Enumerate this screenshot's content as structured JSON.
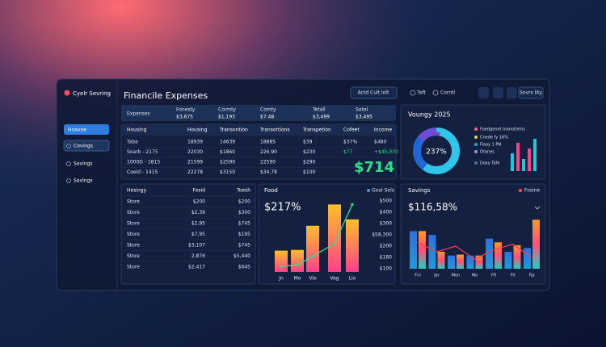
{
  "sidebar": {
    "brand": "Cyelr Sevring",
    "nav": [
      "Hoavne",
      "Covings",
      "Savings",
      "Savlngs"
    ]
  },
  "header": {
    "title": "Financile Expenses",
    "buttons": [
      "Actd Cult lolt",
      "Taft",
      "Corntl",
      "Sovrs lity"
    ]
  },
  "summary": [
    {
      "label": "Expenses"
    },
    {
      "label": "Fonesty",
      "value": "$3,675"
    },
    {
      "label": "Cormty",
      "value": "$1,193"
    },
    {
      "label": "Comty",
      "value": "$7.48"
    },
    {
      "label": "Tetall",
      "value": "$3,499"
    },
    {
      "label": "Sotel",
      "value": "$3,495"
    }
  ],
  "table": {
    "header": [
      "Housing",
      "Housing",
      "Transontion",
      "Transortions",
      "Transpetion",
      "Cofeet",
      "Income"
    ],
    "rows": [
      [
        "Taba",
        "18939",
        "14639",
        "1888S",
        "$39",
        "$37%",
        "$480"
      ],
      [
        "Soarb - 2175",
        "22030",
        "$1860",
        "226.90",
        "$230",
        "$77",
        "+$45,070"
      ],
      [
        "1000D - 1815",
        "21599",
        "$2590",
        "22590",
        "$290"
      ],
      [
        "Coeld - 1415",
        "22278",
        "$3150",
        "$34,78",
        "$100"
      ]
    ],
    "highlight": "$714"
  },
  "items_table": {
    "header": [
      "Hesingy",
      "Fosid",
      "Toesh"
    ],
    "rows": [
      [
        "Store",
        "$200",
        "$200"
      ],
      [
        "Store",
        "$2,39",
        "$300"
      ],
      [
        "Store",
        "$2,95",
        "$745"
      ],
      [
        "Store",
        "$7,95",
        "$195"
      ],
      [
        "Store",
        "$3,107",
        "$745"
      ],
      [
        "Store",
        "2,876",
        "$5,440"
      ],
      [
        "Store",
        "$2,417",
        "$645"
      ]
    ]
  },
  "food_chart": {
    "title": "Food",
    "legend": "Goal Sels",
    "headline": "$217%",
    "axis_labels": [
      "$500",
      "$400",
      "$300",
      "$58,300",
      "$200",
      "$180",
      "$100"
    ],
    "categories": [
      "Jn",
      "Mo",
      "Vie",
      "Vag",
      "Lio"
    ],
    "bars": [
      30,
      31,
      65,
      95,
      74
    ],
    "line": [
      8,
      10,
      22,
      40,
      95
    ],
    "ylim": [
      0,
      100
    ]
  },
  "donut": {
    "title": "Voungy 2025",
    "center": "237%",
    "values": [
      60,
      25,
      15
    ],
    "colors": [
      "#2fc4e8",
      "#1f66d6",
      "#6a4fd6"
    ],
    "legend": [
      "Fuedgenet Inanotiems",
      "Cnede fy 16%",
      "Fiaoy 1 PN",
      "Oranes",
      "Doxy Tafe"
    ],
    "legend_colors": [
      "#ff5a8a",
      "#f2c94c",
      "#2f9be8",
      "#9b8cff",
      "#5a6f99"
    ],
    "mini_bars": [
      22,
      35,
      15,
      28,
      40
    ]
  },
  "savings": {
    "title": "Savings",
    "legend": "Fosine",
    "headline": "$116,58%",
    "categories": [
      "Fni",
      "Jar",
      "Mon",
      "Mo",
      "Ffi",
      "Fil",
      "Fip"
    ],
    "ylim": [
      0,
      60
    ],
    "series": [
      {
        "name": "A",
        "values": [
          40,
          36,
          14,
          14,
          32,
          18,
          22
        ]
      },
      {
        "name": "B",
        "values": [
          40,
          18,
          15,
          14,
          28,
          25,
          52
        ]
      }
    ],
    "line": [
      28,
      18,
      24,
      10,
      20,
      26,
      12
    ]
  }
}
